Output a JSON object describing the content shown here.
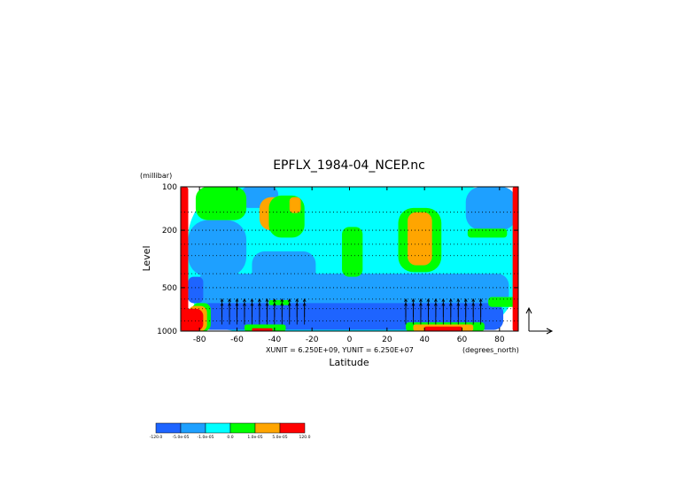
{
  "chart_data": {
    "type": "heatmap",
    "title": "EPFLX_1984-04_NCEP.nc",
    "xlabel": "Latitude",
    "xunit_label": "(degrees_north)",
    "ylabel": "Level",
    "yunit_label": "(millibar)",
    "vector_scale_text": "XUNIT = 6.250E+09, YUNIT = 6.250E+07",
    "x_ticks": [
      -80,
      -60,
      -40,
      -20,
      0,
      20,
      40,
      60,
      80
    ],
    "x_tick_labels": [
      "-80",
      "-60",
      "-40",
      "-20",
      "0",
      "20",
      "40",
      "60",
      "80"
    ],
    "xlim": [
      -90,
      90
    ],
    "y_ticks": [
      100,
      200,
      500,
      1000
    ],
    "y_tick_labels": [
      "100",
      "200",
      "500",
      "1000"
    ],
    "ylim": [
      1000,
      100
    ],
    "y_scale": "log",
    "grid": true,
    "colorbar": {
      "colors": [
        "#1e64ff",
        "#1ea0ff",
        "#00ffff",
        "#00ff00",
        "#ffa500",
        "#ff0000"
      ],
      "labels": [
        "-120.0",
        "-5.0e-05",
        "-1.0e-05",
        "0.0",
        "1.0e-05",
        "5.0e-05",
        "120.0"
      ]
    },
    "regions": [
      {
        "level": 2,
        "x": [
          -86,
          89
        ],
        "p": [
          100,
          1000
        ]
      },
      {
        "level": 1,
        "x": [
          -86,
          -55
        ],
        "p": [
          170,
          420
        ]
      },
      {
        "level": 1,
        "x": [
          -52,
          -18
        ],
        "p": [
          280,
          500
        ]
      },
      {
        "level": 1,
        "x": [
          -82,
          85
        ],
        "p": [
          400,
          680
        ]
      },
      {
        "level": 1,
        "x": [
          62,
          89
        ],
        "p": [
          100,
          200
        ]
      },
      {
        "level": 1,
        "x": [
          -58,
          -38
        ],
        "p": [
          100,
          140
        ]
      },
      {
        "level": 1,
        "x": [
          20,
          65
        ],
        "p": [
          480,
          720
        ]
      },
      {
        "level": 0,
        "x": [
          -80,
          82
        ],
        "p": [
          640,
          980
        ]
      },
      {
        "level": 0,
        "x": [
          -86,
          -78
        ],
        "p": [
          420,
          640
        ]
      },
      {
        "level": 3,
        "x": [
          -82,
          -55
        ],
        "p": [
          100,
          170
        ]
      },
      {
        "level": 4,
        "x": [
          -48,
          -30
        ],
        "p": [
          118,
          200
        ]
      },
      {
        "level": 3,
        "x": [
          -43,
          -24
        ],
        "p": [
          115,
          225
        ]
      },
      {
        "level": 4,
        "x": [
          -32,
          -26
        ],
        "p": [
          118,
          152
        ]
      },
      {
        "level": 3,
        "x": [
          -4,
          7
        ],
        "p": [
          190,
          420
        ]
      },
      {
        "level": 3,
        "x": [
          26,
          49
        ],
        "p": [
          140,
          390
        ]
      },
      {
        "level": 4,
        "x": [
          31,
          44
        ],
        "p": [
          150,
          350
        ]
      },
      {
        "level": 3,
        "x": [
          63,
          84
        ],
        "p": [
          195,
          225
        ]
      },
      {
        "level": 3,
        "x": [
          -43,
          -32
        ],
        "p": [
          610,
          660
        ]
      },
      {
        "level": 3,
        "x": [
          -56,
          -34
        ],
        "p": [
          900,
          1000
        ]
      },
      {
        "level": 5,
        "x": [
          -52,
          -41
        ],
        "p": [
          955,
          1000
        ]
      },
      {
        "level": 3,
        "x": [
          30,
          72
        ],
        "p": [
          870,
          1000
        ]
      },
      {
        "level": 4,
        "x": [
          34,
          66
        ],
        "p": [
          900,
          1000
        ]
      },
      {
        "level": 5,
        "x": [
          40,
          60
        ],
        "p": [
          930,
          1000
        ]
      },
      {
        "level": 3,
        "x": [
          -84,
          -74
        ],
        "p": [
          640,
          1000
        ]
      },
      {
        "level": 4,
        "x": [
          -86,
          -76
        ],
        "p": [
          670,
          1000
        ]
      },
      {
        "level": 5,
        "x": [
          -89,
          -78
        ],
        "p": [
          700,
          1000
        ]
      },
      {
        "level": 3,
        "x": [
          74,
          89
        ],
        "p": [
          580,
          680
        ]
      },
      {
        "level": 5,
        "x": [
          -90,
          -86
        ],
        "p": [
          100,
          1000
        ]
      },
      {
        "level": 5,
        "x": [
          87,
          90
        ],
        "p": [
          100,
          1000
        ]
      }
    ],
    "vector_arrow_lats": [
      -68,
      -64,
      -60,
      -56,
      -52,
      -48,
      -44,
      -40,
      -36,
      -32,
      -28,
      -24,
      30,
      34,
      38,
      42,
      46,
      50,
      54,
      58,
      62,
      66,
      70
    ]
  }
}
